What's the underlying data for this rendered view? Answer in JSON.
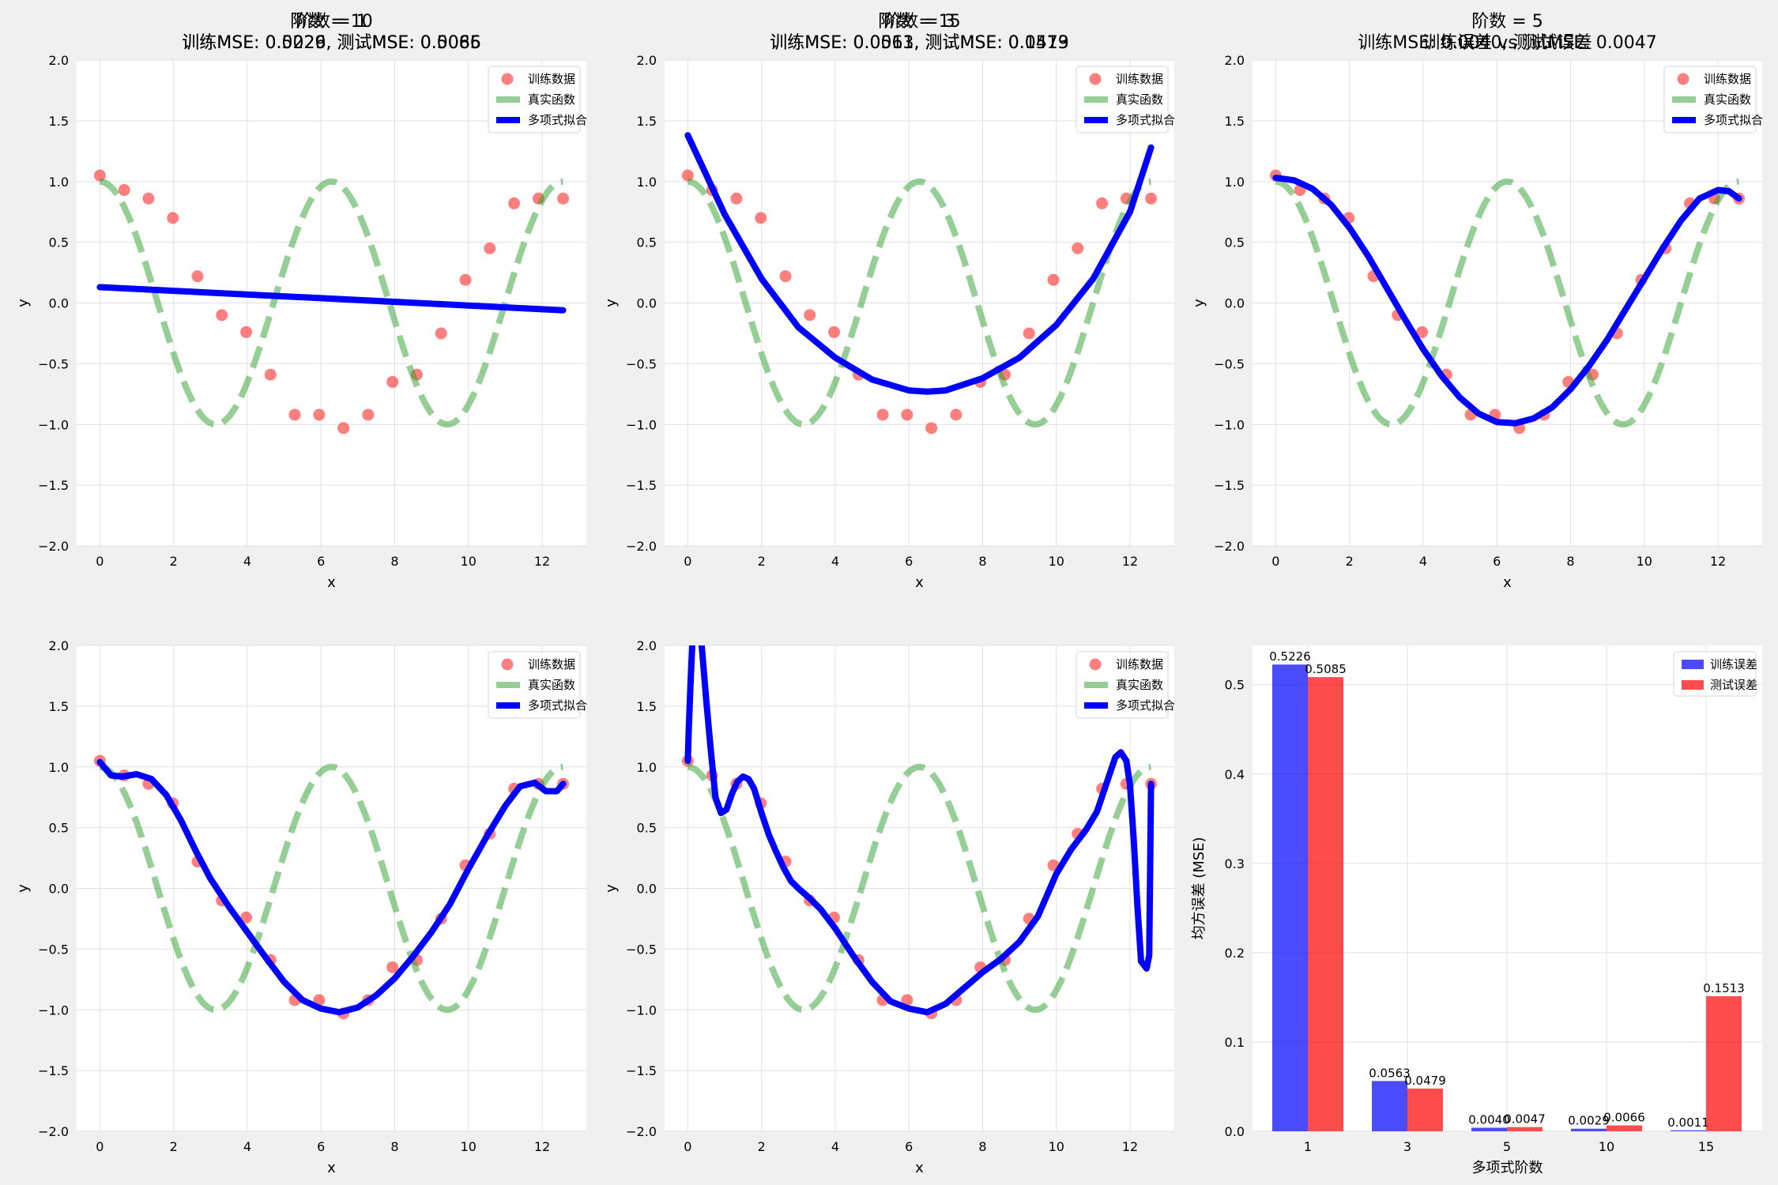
{
  "chart_data": [
    {
      "type": "line",
      "title_line1": "阶数 = 1",
      "title_line2": "训练MSE: 0.5226, 测试MSE: 0.5085",
      "xlabel": "x",
      "ylabel": "y",
      "xlim": [
        -0.63,
        13.2
      ],
      "ylim": [
        -2.0,
        2.0
      ],
      "xticks": [
        0,
        2,
        4,
        6,
        8,
        10,
        12
      ],
      "yticks": [
        -2.0,
        -1.5,
        -1.0,
        -0.5,
        0.0,
        0.5,
        1.0,
        1.5,
        2.0
      ],
      "grid": true,
      "legend_position": "top-right",
      "legend": [
        "训练数据",
        "真实函数",
        "多项式拟合"
      ],
      "series": [
        {
          "name": "训练数据",
          "kind": "scatter",
          "color": "#ff0000",
          "x": [
            0,
            0.66,
            1.32,
            1.98,
            2.65,
            3.31,
            3.97,
            4.63,
            5.29,
            5.95,
            6.61,
            7.28,
            7.94,
            8.6,
            9.26,
            9.92,
            10.58,
            11.24,
            11.9,
            12.57
          ],
          "y": [
            1.05,
            0.93,
            0.86,
            0.7,
            0.22,
            -0.1,
            -0.24,
            -0.59,
            -0.92,
            -0.92,
            -1.03,
            -0.92,
            -0.65,
            -0.59,
            -0.25,
            0.19,
            0.45,
            0.82,
            0.86,
            0.86
          ]
        },
        {
          "name": "真实函数",
          "kind": "function",
          "fn": "cos",
          "color": "#2ca02c"
        },
        {
          "name": "多项式拟合",
          "kind": "line",
          "color": "#0000ff",
          "x": [
            0,
            12.57
          ],
          "y": [
            0.13,
            -0.06
          ]
        }
      ]
    },
    {
      "type": "line",
      "title_line1": "阶数 = 3",
      "title_line2": "训练MSE: 0.0563, 测试MSE: 0.0479",
      "xlabel": "x",
      "ylabel": "y",
      "xlim": [
        -0.63,
        13.2
      ],
      "ylim": [
        -2.0,
        2.0
      ],
      "xticks": [
        0,
        2,
        4,
        6,
        8,
        10,
        12
      ],
      "yticks": [
        -2.0,
        -1.5,
        -1.0,
        -0.5,
        0.0,
        0.5,
        1.0,
        1.5,
        2.0
      ],
      "grid": true,
      "legend_position": "top-right",
      "legend": [
        "训练数据",
        "真实函数",
        "多项式拟合"
      ],
      "series": [
        {
          "name": "训练数据",
          "kind": "scatter",
          "color": "#ff0000",
          "x": [
            0,
            0.66,
            1.32,
            1.98,
            2.65,
            3.31,
            3.97,
            4.63,
            5.29,
            5.95,
            6.61,
            7.28,
            7.94,
            8.6,
            9.26,
            9.92,
            10.58,
            11.24,
            11.9,
            12.57
          ],
          "y": [
            1.05,
            0.93,
            0.86,
            0.7,
            0.22,
            -0.1,
            -0.24,
            -0.59,
            -0.92,
            -0.92,
            -1.03,
            -0.92,
            -0.65,
            -0.59,
            -0.25,
            0.19,
            0.45,
            0.82,
            0.86,
            0.86
          ]
        },
        {
          "name": "真实函数",
          "kind": "function",
          "fn": "cos",
          "color": "#2ca02c"
        },
        {
          "name": "多项式拟合",
          "kind": "line",
          "color": "#0000ff",
          "x": [
            0,
            1,
            2,
            3,
            4,
            5,
            6,
            6.5,
            7,
            8,
            9,
            10,
            11,
            12,
            12.57
          ],
          "y": [
            1.38,
            0.73,
            0.2,
            -0.2,
            -0.45,
            -0.63,
            -0.72,
            -0.73,
            -0.72,
            -0.62,
            -0.45,
            -0.18,
            0.2,
            0.75,
            1.28
          ]
        }
      ]
    },
    {
      "type": "line",
      "title_line1": "阶数 = 5",
      "title_line2": "训练MSE: 0.0040, 测试MSE: 0.0047",
      "xlabel": "x",
      "ylabel": "y",
      "xlim": [
        -0.63,
        13.2
      ],
      "ylim": [
        -2.0,
        2.0
      ],
      "xticks": [
        0,
        2,
        4,
        6,
        8,
        10,
        12
      ],
      "yticks": [
        -2.0,
        -1.5,
        -1.0,
        -0.5,
        0.0,
        0.5,
        1.0,
        1.5,
        2.0
      ],
      "grid": true,
      "legend_position": "top-right",
      "legend": [
        "训练数据",
        "真实函数",
        "多项式拟合"
      ],
      "series": [
        {
          "name": "训练数据",
          "kind": "scatter",
          "color": "#ff0000",
          "x": [
            0,
            0.66,
            1.32,
            1.98,
            2.65,
            3.31,
            3.97,
            4.63,
            5.29,
            5.95,
            6.61,
            7.28,
            7.94,
            8.6,
            9.26,
            9.92,
            10.58,
            11.24,
            11.9,
            12.57
          ],
          "y": [
            1.05,
            0.93,
            0.86,
            0.7,
            0.22,
            -0.1,
            -0.24,
            -0.59,
            -0.92,
            -0.92,
            -1.03,
            -0.92,
            -0.65,
            -0.59,
            -0.25,
            0.19,
            0.45,
            0.82,
            0.86,
            0.86
          ]
        },
        {
          "name": "真实函数",
          "kind": "function",
          "fn": "cos",
          "color": "#2ca02c"
        },
        {
          "name": "多项式拟合",
          "kind": "line",
          "color": "#0000ff",
          "x": [
            0,
            0.5,
            1,
            1.5,
            2,
            2.5,
            3,
            3.5,
            4,
            4.5,
            5,
            5.5,
            6,
            6.5,
            7,
            7.5,
            8,
            8.5,
            9,
            9.5,
            10,
            10.5,
            11,
            11.5,
            12,
            12.3,
            12.57
          ],
          "y": [
            1.03,
            1.01,
            0.94,
            0.81,
            0.62,
            0.39,
            0.13,
            -0.13,
            -0.38,
            -0.6,
            -0.78,
            -0.91,
            -0.98,
            -0.99,
            -0.95,
            -0.86,
            -0.71,
            -0.52,
            -0.3,
            -0.05,
            0.2,
            0.45,
            0.68,
            0.86,
            0.93,
            0.92,
            0.86
          ]
        }
      ]
    },
    {
      "type": "line",
      "title_line1": "阶数 = 10",
      "title_line2": "训练MSE: 0.0029, 测试MSE: 0.0066",
      "xlabel": "x",
      "ylabel": "y",
      "xlim": [
        -0.63,
        13.2
      ],
      "ylim": [
        -2.0,
        2.0
      ],
      "xticks": [
        0,
        2,
        4,
        6,
        8,
        10,
        12
      ],
      "yticks": [
        -2.0,
        -1.5,
        -1.0,
        -0.5,
        0.0,
        0.5,
        1.0,
        1.5,
        2.0
      ],
      "grid": true,
      "legend_position": "top-right",
      "legend": [
        "训练数据",
        "真实函数",
        "多项式拟合"
      ],
      "series": [
        {
          "name": "训练数据",
          "kind": "scatter",
          "color": "#ff0000",
          "x": [
            0,
            0.66,
            1.32,
            1.98,
            2.65,
            3.31,
            3.97,
            4.63,
            5.29,
            5.95,
            6.61,
            7.28,
            7.94,
            8.6,
            9.26,
            9.92,
            10.58,
            11.24,
            11.9,
            12.57
          ],
          "y": [
            1.05,
            0.93,
            0.86,
            0.7,
            0.22,
            -0.1,
            -0.24,
            -0.59,
            -0.92,
            -0.92,
            -1.03,
            -0.92,
            -0.65,
            -0.59,
            -0.25,
            0.19,
            0.45,
            0.82,
            0.86,
            0.86
          ]
        },
        {
          "name": "真实函数",
          "kind": "function",
          "fn": "cos",
          "color": "#2ca02c"
        },
        {
          "name": "多项式拟合",
          "kind": "line",
          "color": "#0000ff",
          "x": [
            0,
            0.3,
            0.6,
            1.0,
            1.4,
            1.8,
            2.2,
            2.6,
            3.0,
            3.5,
            4.0,
            4.5,
            5.0,
            5.5,
            6.0,
            6.5,
            7.0,
            7.5,
            8.0,
            8.5,
            9.0,
            9.5,
            10.0,
            10.5,
            11.0,
            11.4,
            11.8,
            12.1,
            12.4,
            12.57
          ],
          "y": [
            1.04,
            0.93,
            0.92,
            0.94,
            0.9,
            0.77,
            0.56,
            0.31,
            0.08,
            -0.15,
            -0.36,
            -0.57,
            -0.77,
            -0.92,
            -0.99,
            -1.02,
            -0.98,
            -0.88,
            -0.74,
            -0.56,
            -0.36,
            -0.13,
            0.16,
            0.43,
            0.68,
            0.84,
            0.87,
            0.8,
            0.8,
            0.86
          ]
        }
      ]
    },
    {
      "type": "line",
      "title_line1": "阶数 = 15",
      "title_line2": "训练MSE: 0.0011, 测试MSE: 0.1513",
      "xlabel": "x",
      "ylabel": "y",
      "xlim": [
        -0.63,
        13.2
      ],
      "ylim": [
        -2.0,
        2.0
      ],
      "xticks": [
        0,
        2,
        4,
        6,
        8,
        10,
        12
      ],
      "yticks": [
        -2.0,
        -1.5,
        -1.0,
        -0.5,
        0.0,
        0.5,
        1.0,
        1.5,
        2.0
      ],
      "grid": true,
      "legend_position": "top-right",
      "legend": [
        "训练数据",
        "真实函数",
        "多项式拟合"
      ],
      "series": [
        {
          "name": "训练数据",
          "kind": "scatter",
          "color": "#ff0000",
          "x": [
            0,
            0.66,
            1.32,
            1.98,
            2.65,
            3.31,
            3.97,
            4.63,
            5.29,
            5.95,
            6.61,
            7.28,
            7.94,
            8.6,
            9.26,
            9.92,
            10.58,
            11.24,
            11.9,
            12.57
          ],
          "y": [
            1.05,
            0.93,
            0.86,
            0.7,
            0.22,
            -0.1,
            -0.24,
            -0.59,
            -0.92,
            -0.92,
            -1.03,
            -0.92,
            -0.65,
            -0.59,
            -0.25,
            0.19,
            0.45,
            0.82,
            0.86,
            0.86
          ]
        },
        {
          "name": "真实函数",
          "kind": "function",
          "fn": "cos",
          "color": "#2ca02c"
        },
        {
          "name": "多项式拟合",
          "kind": "line",
          "color": "#0000ff",
          "x": [
            0,
            0.02,
            0.07,
            0.12,
            0.2,
            0.35,
            0.5,
            0.62,
            0.75,
            0.9,
            1.05,
            1.2,
            1.35,
            1.5,
            1.65,
            1.8,
            2.0,
            2.2,
            2.4,
            2.6,
            2.8,
            3.0,
            3.3,
            3.6,
            4.0,
            4.5,
            5.0,
            5.5,
            6.0,
            6.5,
            7.0,
            7.5,
            8.0,
            8.5,
            9.0,
            9.5,
            10.0,
            10.4,
            10.8,
            11.1,
            11.4,
            11.6,
            11.75,
            11.9,
            12.0,
            12.1,
            12.2,
            12.3,
            12.45,
            12.52,
            12.57
          ],
          "y": [
            1.05,
            1.25,
            1.65,
            2.0,
            2.2,
            2.1,
            1.55,
            1.15,
            0.75,
            0.62,
            0.65,
            0.78,
            0.88,
            0.92,
            0.9,
            0.82,
            0.62,
            0.44,
            0.3,
            0.17,
            0.06,
            0.0,
            -0.08,
            -0.17,
            -0.33,
            -0.56,
            -0.77,
            -0.93,
            -0.99,
            -1.02,
            -0.95,
            -0.82,
            -0.69,
            -0.58,
            -0.44,
            -0.23,
            0.12,
            0.32,
            0.48,
            0.63,
            0.9,
            1.08,
            1.12,
            1.05,
            0.85,
            0.4,
            -0.15,
            -0.6,
            -0.66,
            -0.55,
            0.86
          ]
        }
      ]
    },
    {
      "type": "bar",
      "title": "训练误差 vs 测试误差",
      "xlabel": "多项式阶数",
      "ylabel": "均方误差 (MSE)",
      "categories": [
        "1",
        "3",
        "5",
        "10",
        "15"
      ],
      "ylim": [
        0,
        0.544
      ],
      "yticks": [
        0.0,
        0.1,
        0.2,
        0.3,
        0.4,
        0.5
      ],
      "grid": true,
      "legend_position": "top-right",
      "series": [
        {
          "name": "训练误差",
          "color": "#0000ff",
          "values": [
            0.5226,
            0.0563,
            0.004,
            0.0029,
            0.0011
          ],
          "labels": [
            "0.5226",
            "0.0563",
            "0.0040",
            "0.0029",
            "0.0011"
          ]
        },
        {
          "name": "测试误差",
          "color": "#ff0000",
          "values": [
            0.5085,
            0.0479,
            0.0047,
            0.0066,
            0.1513
          ],
          "labels": [
            "0.5085",
            "0.0479",
            "0.0047",
            "0.0066",
            "0.1513"
          ]
        }
      ]
    }
  ]
}
